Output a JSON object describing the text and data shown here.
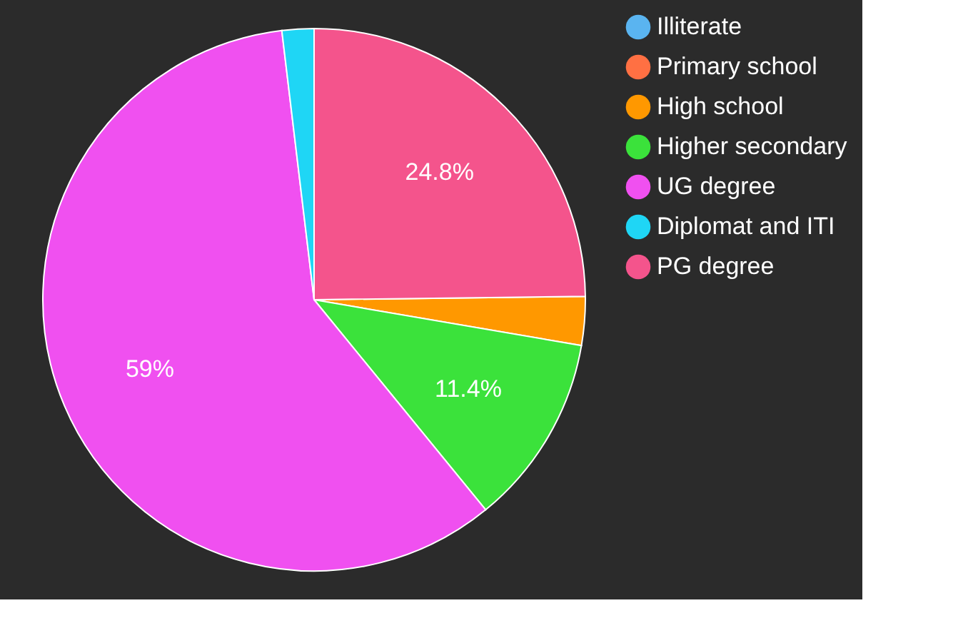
{
  "chart_data": {
    "type": "pie",
    "categories": [
      "Illiterate",
      "Primary school",
      "High school",
      "Higher secondary",
      "UG degree",
      "Diplomat and ITI",
      "PG degree"
    ],
    "values": [
      0,
      0,
      2.9,
      11.4,
      59,
      1.9,
      24.8
    ],
    "colors": [
      "#5ab4f0",
      "#ff7043",
      "#ff9800",
      "#3be23b",
      "#f050f0",
      "#1fd6f5",
      "#f4548c"
    ],
    "value_labels": [
      null,
      null,
      null,
      "11.4%",
      "59%",
      null,
      "24.8%"
    ],
    "legend": "top right"
  }
}
